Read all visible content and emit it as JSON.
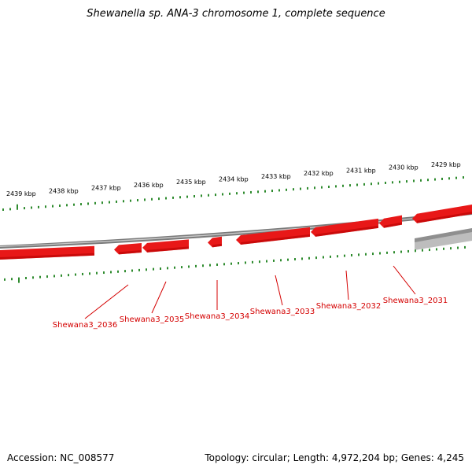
{
  "title": "Shewanella sp. ANA-3 chromosome 1, complete sequence",
  "footer": {
    "accession": "Accession: NC_008577",
    "summary": "Topology: circular; Length: 4,972,204 bp; Genes: 4,245"
  },
  "ruler_labels": [
    "2439 kbp",
    "2438 kbp",
    "2437 kbp",
    "2436 kbp",
    "2435 kbp",
    "2434 kbp",
    "2433 kbp",
    "2432 kbp",
    "2431 kbp",
    "2430 kbp",
    "2429 kbp"
  ],
  "gene_labels": [
    "Shewana3_2036",
    "Shewana3_2035",
    "Shewana3_2034",
    "Shewana3_2033",
    "Shewana3_2032",
    "Shewana3_2031"
  ],
  "colors": {
    "gene": "#e81818",
    "gene_dark": "#b00000",
    "backbone": "#7a7a7a",
    "ticks": "#2e8b2e",
    "label": "#d40000"
  }
}
